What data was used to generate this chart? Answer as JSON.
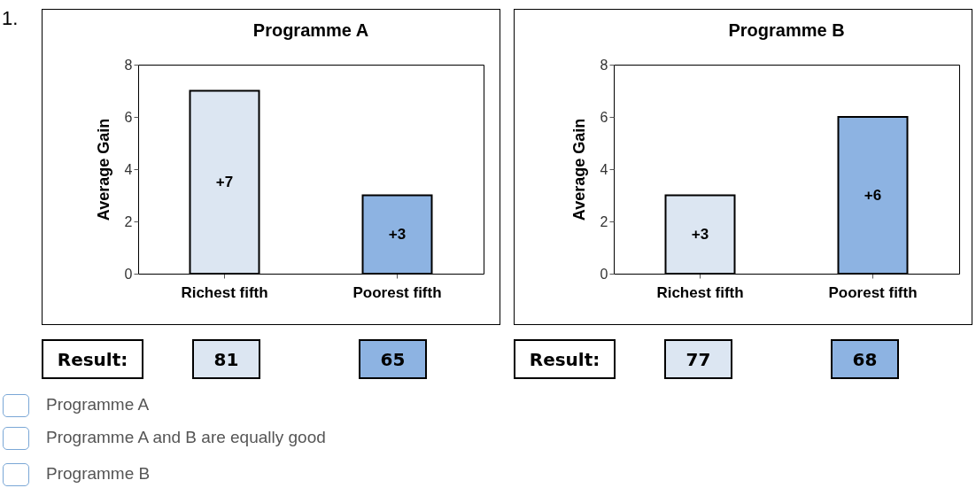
{
  "chart_data": [
    {
      "type": "bar",
      "title": "Programme A",
      "ylabel": "Average Gain",
      "categories": [
        "Richest fifth",
        "Poorest fifth"
      ],
      "values": [
        7,
        3
      ],
      "colors": [
        "#dce6f2",
        "#8db3e2"
      ],
      "value_labels": [
        "+7",
        "+3"
      ],
      "ylim": [
        0,
        8
      ],
      "yticks": [
        0,
        2,
        4,
        6,
        8
      ],
      "grid": false,
      "annotations": [
        "Result:",
        "81",
        "65"
      ]
    },
    {
      "type": "bar",
      "title": "Programme B",
      "ylabel": "Average Gain",
      "categories": [
        "Richest fifth",
        "Poorest fifth"
      ],
      "values": [
        3,
        6
      ],
      "colors": [
        "#dce6f2",
        "#8db3e2"
      ],
      "value_labels": [
        "+3",
        "+6"
      ],
      "ylim": [
        0,
        8
      ],
      "yticks": [
        0,
        2,
        4,
        6,
        8
      ],
      "grid": false,
      "annotations": [
        "Result:",
        "77",
        "68"
      ]
    },
    {
      "type": "other",
      "annotations": [
        "1.",
        "Programme A",
        "Programme A and B are equally good",
        "Programme B"
      ]
    }
  ]
}
